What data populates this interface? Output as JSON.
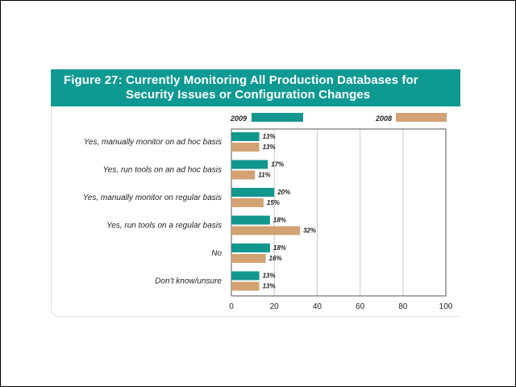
{
  "figure": {
    "title_line1": "Figure 27:  Currently Monitoring All Production Databases for",
    "title_line2": "Security Issues or Configuration Changes"
  },
  "colors": {
    "series_2009": "#12978f",
    "series_2008": "#d2a273",
    "title_bg": "#0e9a93"
  },
  "chart_data": {
    "type": "bar",
    "orientation": "horizontal",
    "categories": [
      "Yes, manually monitor on ad hoc basis",
      "Yes, run tools on an ad hoc basis",
      "Yes, manually monitor on regular basis",
      "Yes, run tools on a regular basis",
      "No",
      "Don’t know/unsure"
    ],
    "series": [
      {
        "name": "2009",
        "values": [
          13,
          17,
          20,
          18,
          18,
          13
        ],
        "labels": [
          "13%",
          "17%",
          "20%",
          "18%",
          "18%",
          "13%"
        ]
      },
      {
        "name": "2008",
        "values": [
          13,
          11,
          15,
          32,
          16,
          13
        ],
        "labels": [
          "13%",
          "11%",
          "15%",
          "32%",
          "16%",
          "13%"
        ]
      }
    ],
    "xlim": [
      0,
      100
    ],
    "xticks": [
      "0",
      "20",
      "40",
      "60",
      "80",
      "100"
    ],
    "grid": true,
    "legend_position": "top"
  }
}
